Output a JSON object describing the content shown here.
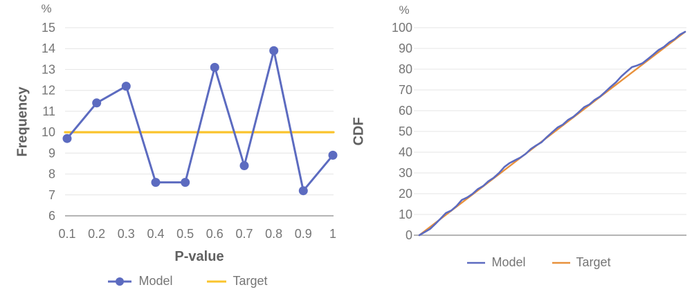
{
  "colors": {
    "model_blue": "#5C6BC0",
    "target_yellow": "#FAC42D",
    "target_orange": "#E8913C",
    "axis_text": "#757575",
    "axis_title": "#616161",
    "gridline": "#E4E4E4",
    "baseline": "#9C9C9C",
    "background": "#FFFFFF"
  },
  "chart_data": [
    {
      "type": "line",
      "title": "",
      "unit": "%",
      "xlabel": "P-value",
      "ylabel": "Frequency",
      "ylim": [
        6,
        15
      ],
      "grid": "horizontal",
      "legend_position": "bottom",
      "y_ticks": [
        15,
        14,
        13,
        12,
        11,
        10,
        9,
        8,
        7,
        6
      ],
      "x_tick_labels": [
        "0.1",
        "0.2",
        "0.3",
        "0.4",
        "0.5",
        "0.6",
        "0.7",
        "0.8",
        "0.9",
        "1"
      ],
      "x": [
        0.1,
        0.2,
        0.3,
        0.4,
        0.5,
        0.6,
        0.7,
        0.8,
        0.9,
        1
      ],
      "series": [
        {
          "name": "Model",
          "color": "#5C6BC0",
          "point_markers": true,
          "values": [
            9.7,
            11.4,
            12.2,
            7.6,
            7.6,
            13.1,
            8.4,
            13.9,
            7.2,
            8.9
          ]
        },
        {
          "name": "Target",
          "color": "#FAC42D",
          "point_markers": false,
          "span_plot": true,
          "values": [
            10,
            10,
            10,
            10,
            10,
            10,
            10,
            10,
            10,
            10
          ]
        }
      ]
    },
    {
      "type": "line",
      "title": "",
      "unit": "%",
      "xlabel": "",
      "ylabel": "CDF",
      "ylim": [
        0,
        100
      ],
      "xlim": [
        0,
        1
      ],
      "grid": "horizontal",
      "legend_position": "bottom",
      "y_ticks": [
        100,
        90,
        80,
        70,
        60,
        50,
        40,
        30,
        20,
        10,
        0
      ],
      "series": [
        {
          "name": "Model",
          "color": "#5C6BC0",
          "point_markers": false,
          "x": [
            0,
            0.02,
            0.04,
            0.06,
            0.08,
            0.1,
            0.12,
            0.14,
            0.16,
            0.18,
            0.2,
            0.22,
            0.24,
            0.26,
            0.28,
            0.3,
            0.32,
            0.34,
            0.36,
            0.38,
            0.4,
            0.42,
            0.44,
            0.46,
            0.48,
            0.5,
            0.52,
            0.54,
            0.56,
            0.58,
            0.6,
            0.62,
            0.64,
            0.66,
            0.68,
            0.7,
            0.72,
            0.74,
            0.76,
            0.78,
            0.8,
            0.82,
            0.84,
            0.86,
            0.88,
            0.9,
            0.92,
            0.94,
            0.96,
            0.98,
            1.0
          ],
          "values": [
            0,
            1.5,
            3.0,
            5.4,
            8.0,
            10.7,
            11.9,
            14.1,
            17.0,
            18.2,
            19.9,
            22.2,
            23.7,
            26.0,
            27.7,
            30.0,
            32.9,
            34.8,
            36.1,
            37.4,
            39.2,
            41.6,
            43.3,
            44.8,
            47.3,
            49.6,
            51.9,
            53.3,
            55.6,
            57.1,
            59.3,
            61.7,
            63.0,
            65.2,
            66.8,
            69.1,
            71.5,
            73.7,
            76.5,
            78.8,
            81.0,
            81.8,
            82.9,
            84.9,
            87.0,
            89.2,
            90.7,
            92.9,
            94.4,
            96.6,
            98.0
          ]
        },
        {
          "name": "Target",
          "color": "#E8913C",
          "point_markers": false,
          "x": [
            0,
            1
          ],
          "values": [
            0,
            98
          ]
        }
      ]
    }
  ]
}
